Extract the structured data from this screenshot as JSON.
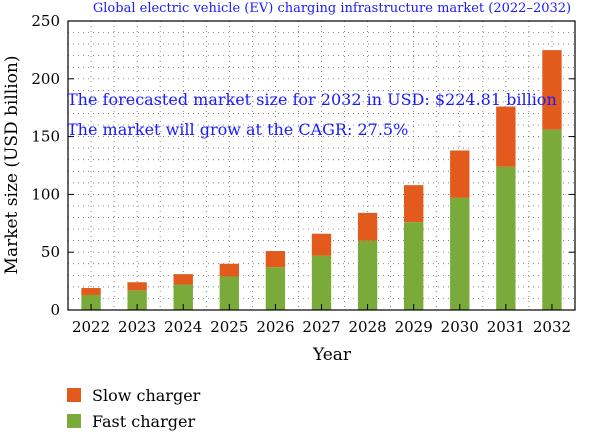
{
  "chart_data": {
    "type": "bar",
    "stacked": true,
    "title": "Global electric vehicle (EV) charging infrastructure market (2022–2032)",
    "xlabel": "Year",
    "ylabel": "Market size (USD billion)",
    "ylim": [
      0,
      250
    ],
    "yticks": [
      "0",
      "50",
      "100",
      "150",
      "200",
      "250"
    ],
    "grid": "dotted",
    "categories": [
      "2022",
      "2023",
      "2024",
      "2025",
      "2026",
      "2027",
      "2028",
      "2029",
      "2030",
      "2031",
      "2032"
    ],
    "series": [
      {
        "name": "Fast charger",
        "color": "#7aab3a",
        "values": [
          13,
          17,
          22,
          29,
          37,
          47,
          60,
          76,
          97,
          124,
          156
        ]
      },
      {
        "name": "Slow charger",
        "color": "#e25a1c",
        "values": [
          6,
          7,
          9,
          11,
          14,
          19,
          24,
          32,
          41,
          52,
          68.8
        ]
      }
    ],
    "annotations": [
      "The forecasted market size for 2032 in USD: $224.81 billion",
      "The market will grow at the CAGR: 27.5%"
    ],
    "legend": {
      "placement": "bottom-left",
      "entries": [
        "Slow charger",
        "Fast charger"
      ]
    }
  }
}
